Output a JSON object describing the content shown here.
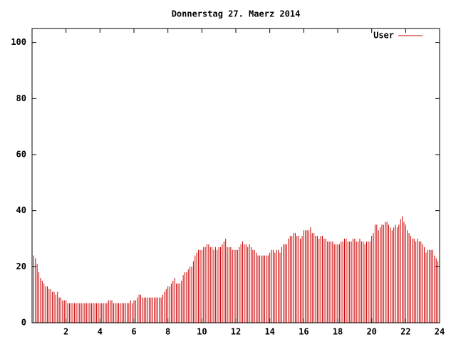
{
  "chart_data": {
    "type": "impulse",
    "title": "Donnerstag 27. Maerz 2014",
    "xlim": [
      0,
      24
    ],
    "xticks": [
      2,
      4,
      6,
      8,
      10,
      12,
      14,
      16,
      18,
      20,
      22,
      24
    ],
    "ylim": [
      0,
      105
    ],
    "yticks": [
      0,
      20,
      40,
      60,
      80,
      100
    ],
    "legend": "top-right",
    "x": [
      0,
      0.1,
      0.2,
      0.3,
      0.4,
      0.5,
      0.6,
      0.7,
      0.8,
      0.9,
      1,
      1.1,
      1.2,
      1.3,
      1.4,
      1.5,
      1.6,
      1.7,
      1.8,
      1.9,
      2,
      2.1,
      2.2,
      2.3,
      2.4,
      2.5,
      2.6,
      2.7,
      2.8,
      2.9,
      3,
      3.1,
      3.2,
      3.3,
      3.4,
      3.5,
      3.6,
      3.7,
      3.8,
      3.9,
      4,
      4.1,
      4.2,
      4.3,
      4.4,
      4.5,
      4.6,
      4.7,
      4.8,
      4.9,
      5,
      5.1,
      5.2,
      5.3,
      5.4,
      5.5,
      5.6,
      5.7,
      5.8,
      5.9,
      6,
      6.1,
      6.2,
      6.3,
      6.4,
      6.5,
      6.6,
      6.7,
      6.8,
      6.9,
      7,
      7.1,
      7.2,
      7.3,
      7.4,
      7.5,
      7.6,
      7.7,
      7.8,
      7.9,
      8,
      8.1,
      8.2,
      8.3,
      8.4,
      8.5,
      8.6,
      8.7,
      8.8,
      8.9,
      9,
      9.1,
      9.2,
      9.3,
      9.4,
      9.5,
      9.6,
      9.7,
      9.8,
      9.9,
      10,
      10.1,
      10.2,
      10.3,
      10.4,
      10.5,
      10.6,
      10.7,
      10.8,
      10.9,
      11,
      11.1,
      11.2,
      11.3,
      11.4,
      11.5,
      11.6,
      11.7,
      11.8,
      11.9,
      12,
      12.1,
      12.2,
      12.3,
      12.4,
      12.5,
      12.6,
      12.7,
      12.8,
      12.9,
      13,
      13.1,
      13.2,
      13.3,
      13.4,
      13.5,
      13.6,
      13.7,
      13.8,
      13.9,
      14,
      14.1,
      14.2,
      14.3,
      14.4,
      14.5,
      14.6,
      14.7,
      14.8,
      14.9,
      15,
      15.1,
      15.2,
      15.3,
      15.4,
      15.5,
      15.6,
      15.7,
      15.8,
      15.9,
      16,
      16.1,
      16.2,
      16.3,
      16.4,
      16.5,
      16.6,
      16.7,
      16.8,
      16.9,
      17,
      17.1,
      17.2,
      17.3,
      17.4,
      17.5,
      17.6,
      17.7,
      17.8,
      17.9,
      18,
      18.1,
      18.2,
      18.3,
      18.4,
      18.5,
      18.6,
      18.7,
      18.8,
      18.9,
      19,
      19.1,
      19.2,
      19.3,
      19.4,
      19.5,
      19.6,
      19.7,
      19.8,
      19.9,
      20,
      20.1,
      20.2,
      20.3,
      20.4,
      20.5,
      20.6,
      20.7,
      20.8,
      20.9,
      21,
      21.1,
      21.2,
      21.3,
      21.4,
      21.5,
      21.6,
      21.7,
      21.8,
      21.9,
      22,
      22.1,
      22.2,
      22.3,
      22.4,
      22.5,
      22.6,
      22.7,
      22.8,
      22.9,
      23,
      23.1,
      23.2,
      23.3,
      23.4,
      23.5,
      23.6,
      23.7,
      23.8,
      23.9
    ],
    "series": [
      {
        "name": "User",
        "color": "#cc0000",
        "values": [
          25,
          24,
          23,
          21,
          18,
          16,
          15,
          14,
          13,
          13,
          12,
          12,
          11,
          11,
          10,
          11,
          9,
          9,
          8,
          8,
          8,
          7,
          7,
          7,
          7,
          7,
          7,
          7,
          7,
          7,
          7,
          7,
          7,
          7,
          7,
          7,
          7,
          7,
          7,
          7,
          7,
          7,
          7,
          7,
          7,
          8,
          8,
          8,
          7,
          7,
          7,
          7,
          7,
          7,
          7,
          7,
          7,
          7,
          8,
          7,
          8,
          8,
          9,
          10,
          10,
          9,
          9,
          9,
          9,
          9,
          9,
          9,
          9,
          9,
          9,
          9,
          9,
          10,
          11,
          12,
          13,
          13,
          14,
          15,
          16,
          14,
          14,
          14,
          15,
          17,
          18,
          18,
          19,
          20,
          20,
          22,
          24,
          25,
          26,
          26,
          26,
          27,
          27,
          28,
          28,
          27,
          27,
          26,
          27,
          26,
          27,
          27,
          28,
          29,
          30,
          27,
          27,
          27,
          26,
          26,
          26,
          26,
          27,
          28,
          29,
          28,
          28,
          27,
          28,
          27,
          26,
          26,
          25,
          24,
          24,
          24,
          24,
          24,
          24,
          24,
          25,
          26,
          26,
          25,
          26,
          26,
          25,
          27,
          28,
          28,
          28,
          30,
          31,
          31,
          32,
          32,
          31,
          31,
          30,
          31,
          33,
          33,
          33,
          33,
          34,
          32,
          32,
          31,
          31,
          30,
          31,
          31,
          30,
          30,
          29,
          29,
          29,
          29,
          28,
          28,
          28,
          28,
          29,
          29,
          30,
          30,
          29,
          29,
          29,
          30,
          30,
          29,
          29,
          30,
          29,
          29,
          28,
          29,
          29,
          29,
          31,
          32,
          35,
          35,
          33,
          34,
          35,
          35,
          36,
          36,
          35,
          34,
          33,
          34,
          35,
          34,
          35,
          37,
          38,
          36,
          35,
          33,
          32,
          31,
          30,
          30,
          29,
          30,
          29,
          29,
          28,
          27,
          25,
          26,
          26,
          26,
          26,
          24,
          23,
          22
        ]
      }
    ]
  }
}
